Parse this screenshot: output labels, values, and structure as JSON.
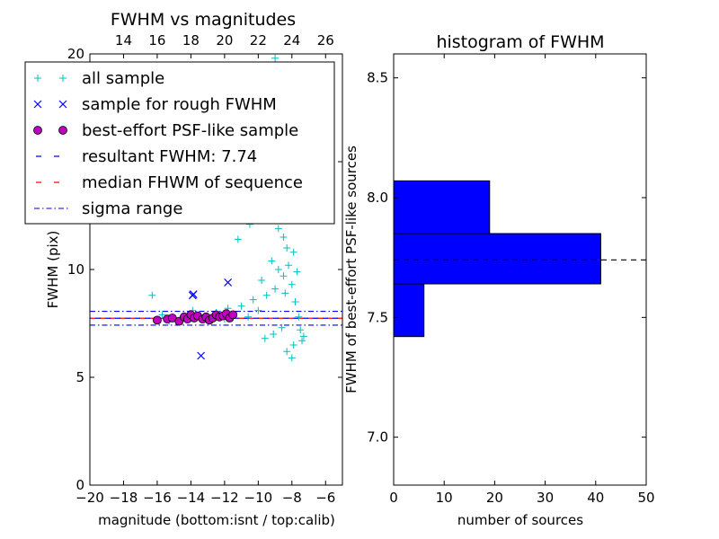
{
  "chart_data": [
    {
      "type": "scatter",
      "title": "FWHM vs magnitudes",
      "xlabel": "magnitude (bottom:isnt / top:calib)",
      "ylabel": "FWHM (pix)",
      "xlim": [
        -20,
        -5
      ],
      "ylim": [
        0,
        20
      ],
      "x_ticks": [
        -20,
        -18,
        -16,
        -14,
        -12,
        -10,
        -8,
        -6
      ],
      "x_tick_labels": [
        "−20",
        "−18",
        "−16",
        "−14",
        "−12",
        "−10",
        "−8",
        "−6"
      ],
      "y_ticks": [
        0,
        5,
        10,
        15,
        20
      ],
      "y_tick_labels": [
        "0",
        "5",
        "10",
        "15",
        "20"
      ],
      "top_axis": {
        "xlim": [
          12,
          27
        ],
        "ticks": [
          14,
          16,
          18,
          20,
          22,
          24,
          26
        ],
        "tick_labels": [
          "14",
          "16",
          "18",
          "20",
          "22",
          "24",
          "26"
        ]
      },
      "legend": {
        "placement": "top-left",
        "entries": [
          {
            "label": "all sample",
            "marker": "+",
            "color": "#00bfbf"
          },
          {
            "label": "sample for rough FWHM",
            "marker": "x",
            "color": "#0000ff"
          },
          {
            "label": "best-effort PSF-like sample",
            "marker": "o",
            "color": "#bf00bf"
          },
          {
            "label": "resultant FWHM: 7.74",
            "marker": "dashed",
            "color": "#0000ff"
          },
          {
            "label": "median FHWM of sequence",
            "marker": "dashed",
            "color": "#ff0000"
          },
          {
            "label": "sigma range",
            "marker": "dashdot",
            "color": "#0000ff"
          }
        ]
      },
      "lines": {
        "resultant_fwhm": 7.74,
        "median_fwhm": 7.74,
        "sigma_range": [
          7.42,
          8.06
        ]
      },
      "series": [
        {
          "name": "all sample",
          "marker": "+",
          "color": "#00bfbf",
          "points": [
            [
              -16.3,
              8.8
            ],
            [
              -15.7,
              7.9
            ],
            [
              -15.3,
              7.6
            ],
            [
              -14.9,
              7.7
            ],
            [
              -14.5,
              7.6
            ],
            [
              -13.9,
              8.1
            ],
            [
              -13.4,
              7.8
            ],
            [
              -12.9,
              7.6
            ],
            [
              -12.5,
              8.0
            ],
            [
              -12.0,
              7.7
            ],
            [
              -11.8,
              8.2
            ],
            [
              -11.5,
              7.9
            ],
            [
              -11.0,
              8.3
            ],
            [
              -10.6,
              7.8
            ],
            [
              -10.3,
              8.6
            ],
            [
              -10.0,
              8.1
            ],
            [
              -9.8,
              9.5
            ],
            [
              -9.5,
              8.8
            ],
            [
              -9.2,
              10.4
            ],
            [
              -9.0,
              9.1
            ],
            [
              -8.8,
              11.9
            ],
            [
              -8.6,
              12.8
            ],
            [
              -8.5,
              9.7
            ],
            [
              -8.4,
              13.6
            ],
            [
              -8.3,
              11.0
            ],
            [
              -8.2,
              10.2
            ],
            [
              -8.1,
              12.4
            ],
            [
              -8.0,
              9.3
            ],
            [
              -7.9,
              10.8
            ],
            [
              -7.8,
              8.5
            ],
            [
              -7.7,
              9.9
            ],
            [
              -7.6,
              7.8
            ],
            [
              -7.5,
              7.2
            ],
            [
              -7.4,
              6.7
            ],
            [
              -7.3,
              6.9
            ],
            [
              -8.7,
              15.8
            ],
            [
              -8.9,
              17.0
            ],
            [
              -9.3,
              18.3
            ],
            [
              -8.1,
              16.4
            ],
            [
              -10.8,
              14.2
            ],
            [
              -10.5,
              12.1
            ],
            [
              -11.2,
              11.4
            ],
            [
              -9.6,
              6.8
            ],
            [
              -8.3,
              6.2
            ],
            [
              -8.0,
              5.9
            ],
            [
              -7.9,
              6.5
            ],
            [
              -8.6,
              7.3
            ],
            [
              -9.1,
              7.0
            ],
            [
              -10.1,
              20.5
            ],
            [
              -9.0,
              19.8
            ],
            [
              -8.5,
              11.5
            ],
            [
              -8.2,
              14.7
            ],
            [
              -7.9,
              13.2
            ],
            [
              -8.8,
              10.0
            ],
            [
              -8.4,
              8.9
            ]
          ]
        },
        {
          "name": "sample for rough FWHM",
          "marker": "x",
          "color": "#0000ff",
          "points": [
            [
              -13.9,
              8.8
            ],
            [
              -13.85,
              8.85
            ],
            [
              -11.8,
              9.4
            ],
            [
              -13.4,
              6.0
            ]
          ]
        },
        {
          "name": "best-effort PSF-like sample",
          "marker": "o",
          "color": "#bf00bf",
          "points": [
            [
              -16.0,
              7.65
            ],
            [
              -15.4,
              7.7
            ],
            [
              -15.1,
              7.75
            ],
            [
              -14.7,
              7.6
            ],
            [
              -14.4,
              7.8
            ],
            [
              -14.2,
              7.7
            ],
            [
              -14.0,
              7.9
            ],
            [
              -13.8,
              7.75
            ],
            [
              -13.6,
              7.85
            ],
            [
              -13.3,
              7.7
            ],
            [
              -13.1,
              7.8
            ],
            [
              -12.9,
              7.65
            ],
            [
              -12.7,
              7.75
            ],
            [
              -12.5,
              7.9
            ],
            [
              -12.3,
              7.8
            ],
            [
              -12.1,
              7.85
            ],
            [
              -11.9,
              7.95
            ],
            [
              -11.7,
              7.75
            ],
            [
              -11.5,
              7.9
            ]
          ]
        }
      ]
    },
    {
      "type": "bar",
      "orientation": "horizontal",
      "title": "histogram of FWHM",
      "xlabel": "number of sources",
      "ylabel": "FWHM of best-effort PSF-like sources",
      "xlim": [
        0,
        50
      ],
      "ylim": [
        6.8,
        8.6
      ],
      "x_ticks": [
        0,
        10,
        20,
        30,
        40,
        50
      ],
      "x_tick_labels": [
        "0",
        "10",
        "20",
        "30",
        "40",
        "50"
      ],
      "y_ticks": [
        7.0,
        7.5,
        8.0,
        8.5
      ],
      "y_tick_labels": [
        "7.0",
        "7.5",
        "8.0",
        "8.5"
      ],
      "bins": [
        {
          "y0": 7.42,
          "y1": 7.64,
          "count": 6
        },
        {
          "y0": 7.64,
          "y1": 7.85,
          "count": 41
        },
        {
          "y0": 7.85,
          "y1": 8.07,
          "count": 19
        }
      ],
      "bar_color": "#0000ff",
      "reference_line": 7.74
    }
  ]
}
